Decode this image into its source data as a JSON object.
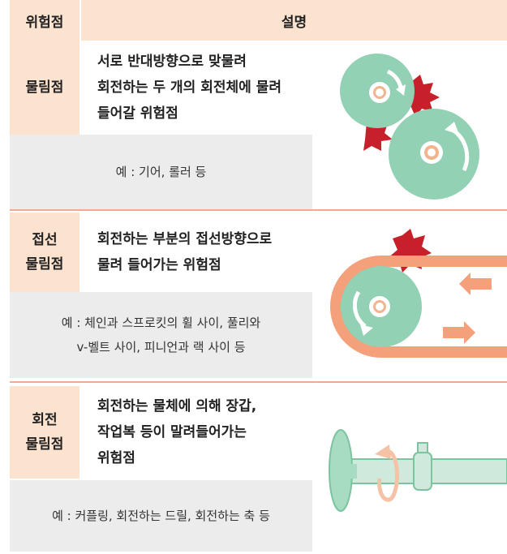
{
  "header": {
    "columns": [
      "위험점",
      "설명"
    ]
  },
  "rows": [
    {
      "hazard": [
        "물림점"
      ],
      "description": [
        "서로 반대방향으로 맞물려",
        "회전하는 두 개의 회전체에 물려",
        "들어갈 위험점"
      ],
      "example": [
        "예 : 기어, 롤러 등"
      ]
    },
    {
      "hazard": [
        "접선",
        "물림점"
      ],
      "description": [
        "회전하는 부분의 접선방향으로",
        "물려 들어가는 위험점"
      ],
      "example": [
        "예 : 체인과 스프로킷의 휠 사이, 풀리와",
        "v-벨트 사이, 피니언과 랙 사이 등"
      ]
    },
    {
      "hazard": [
        "회전",
        "물림점"
      ],
      "description": [
        "회전하는 물체에 의해 장갑,",
        "작업복 등이 말려들어가는",
        "위험점"
      ],
      "example": [
        "예 : 커플링, 회전하는 드릴, 회전하는 축 등"
      ]
    }
  ]
}
